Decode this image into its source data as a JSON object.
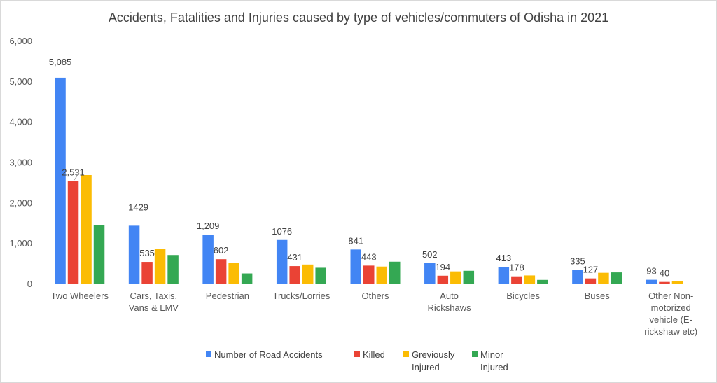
{
  "chart_data": {
    "type": "bar",
    "title": "Accidents, Fatalities and Injuries caused by type of vehicles/commuters of Odisha in 2021",
    "xlabel": "",
    "ylabel": "",
    "ylim": [
      0,
      6000
    ],
    "yticks": [
      "0",
      "1,000",
      "2,000",
      "3,000",
      "4,000",
      "5,000",
      "6,000"
    ],
    "ytick_values": [
      0,
      1000,
      2000,
      3000,
      4000,
      5000,
      6000
    ],
    "grid": false,
    "legend_position": "bottom",
    "categories": [
      [
        "Two Wheelers"
      ],
      [
        "Cars, Taxis,",
        "Vans & LMV"
      ],
      [
        "Pedestrian"
      ],
      [
        "Trucks/Lorries"
      ],
      [
        "Others"
      ],
      [
        "Auto",
        "Rickshaws"
      ],
      [
        "Bicycles"
      ],
      [
        "Buses"
      ],
      [
        "Other Non-",
        "motorized",
        "vehicle (E-",
        "rickshaw etc)"
      ]
    ],
    "series": [
      {
        "name": [
          "Number of Road Accidents"
        ],
        "color": "#4285f4",
        "values": [
          5085,
          1429,
          1209,
          1076,
          841,
          502,
          413,
          335,
          93
        ],
        "labels": [
          "5,085",
          "1429",
          "1,209",
          "1076",
          "841",
          "502",
          "413",
          "335",
          "93"
        ]
      },
      {
        "name": [
          "Killed"
        ],
        "color": "#ea4335",
        "values": [
          2531,
          535,
          602,
          431,
          443,
          194,
          178,
          127,
          40
        ],
        "labels": [
          "2,531",
          "535",
          "602",
          "431",
          "443",
          "194",
          "178",
          "127",
          "40"
        ]
      },
      {
        "name": [
          "Greviously",
          "Injured"
        ],
        "color": "#fbbc04",
        "values": [
          2680,
          860,
          510,
          470,
          420,
          300,
          200,
          265,
          55
        ],
        "labels": null
      },
      {
        "name": [
          "Minor",
          "Injured"
        ],
        "color": "#34a853",
        "values": [
          1450,
          705,
          250,
          390,
          540,
          315,
          90,
          275,
          0
        ],
        "labels": null
      }
    ]
  }
}
